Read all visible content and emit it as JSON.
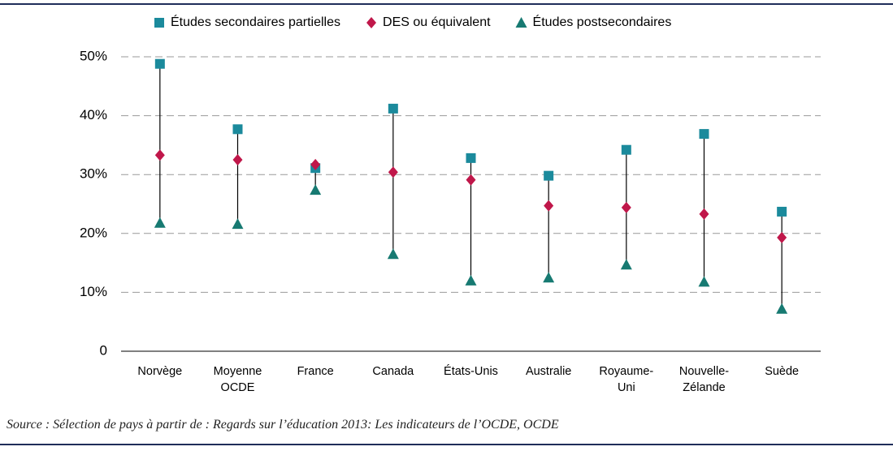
{
  "chart_data": {
    "type": "dot-range",
    "categories": [
      "Norvège",
      "Moyenne OCDE",
      "France",
      "Canada",
      "États-Unis",
      "Australie",
      "Royaume-Uni",
      "Nouvelle-Zélande",
      "Suède"
    ],
    "series": [
      {
        "name": "Études secondaires partielles",
        "color": "#1b8a9c",
        "marker": "square",
        "values": [
          48.8,
          37.7,
          31.1,
          41.2,
          32.8,
          29.8,
          34.2,
          36.9,
          23.7
        ]
      },
      {
        "name": "DES ou équivalent",
        "color": "#c0174a",
        "marker": "diamond",
        "values": [
          33.3,
          32.5,
          31.7,
          30.4,
          29.1,
          24.7,
          24.4,
          23.3,
          19.3
        ]
      },
      {
        "name": "Études postsecondaires",
        "color": "#177a72",
        "marker": "triangle",
        "values": [
          21.8,
          21.6,
          27.4,
          16.5,
          12.0,
          12.5,
          14.7,
          11.8,
          7.2
        ]
      }
    ],
    "ylim": [
      0,
      50
    ],
    "yticks": [
      0,
      {
        "value": 10,
        "label": "10%"
      },
      {
        "value": 20,
        "label": "20%"
      },
      {
        "value": 30,
        "label": "30%"
      },
      {
        "value": 40,
        "label": "40%"
      },
      {
        "value": 50,
        "label": "50%"
      }
    ],
    "grid": true,
    "legend": "top",
    "source": "Source : Sélection de pays à partir de : Regards sur l’éducation 2013: Les indicateurs de l’OCDE, OCDE"
  }
}
